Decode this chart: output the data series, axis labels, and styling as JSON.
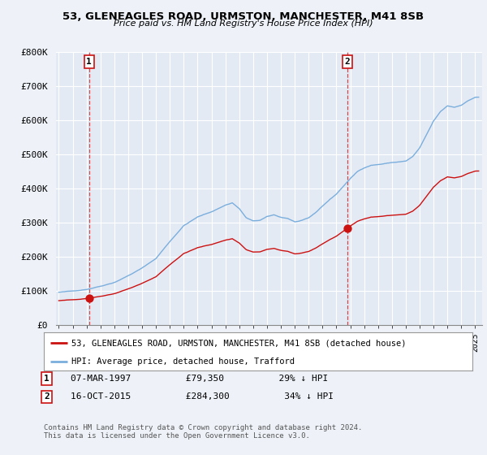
{
  "title1": "53, GLENEAGLES ROAD, URMSTON, MANCHESTER, M41 8SB",
  "title2": "Price paid vs. HM Land Registry's House Price Index (HPI)",
  "bg_color": "#eef2f8",
  "plot_bg": "#e4eaf4",
  "grid_color": "#ffffff",
  "hpi_color": "#7aaedd",
  "price_color": "#cc1111",
  "annotation_box_color": "#cc1111",
  "sale1_date_num": 1997.18,
  "sale1_price": 79350,
  "sale2_date_num": 2015.79,
  "sale2_price": 284300,
  "legend_label1": "53, GLENEAGLES ROAD, URMSTON, MANCHESTER, M41 8SB (detached house)",
  "legend_label2": "HPI: Average price, detached house, Trafford",
  "note1_text": "07-MAR-1997          £79,350          29% ↓ HPI",
  "note2_text": "16-OCT-2015          £284,300          34% ↓ HPI",
  "footer": "Contains HM Land Registry data © Crown copyright and database right 2024.\nThis data is licensed under the Open Government Licence v3.0.",
  "ylim": [
    0,
    800000
  ],
  "xlim_start": 1994.8,
  "xlim_end": 2025.5
}
